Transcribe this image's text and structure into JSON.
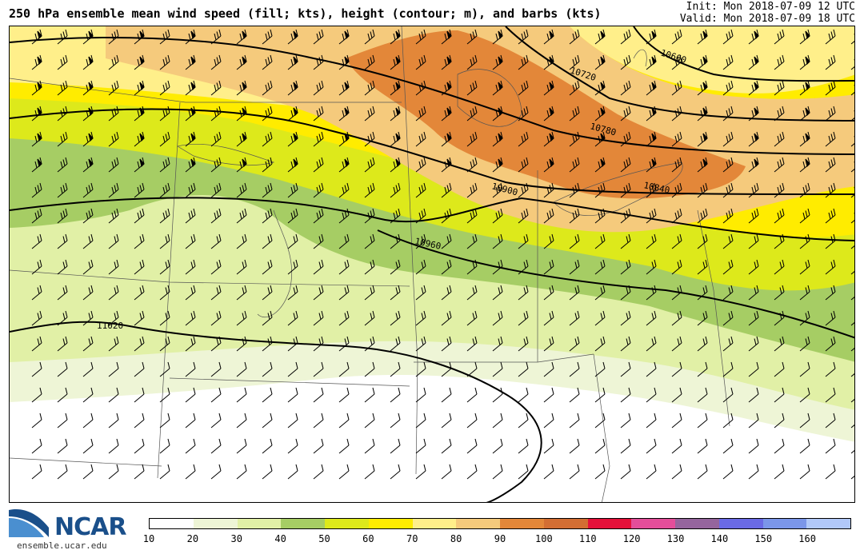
{
  "header": {
    "title": "250 hPa ensemble mean wind speed (fill; kts), height (contour; m), and barbs (kts)",
    "init": "Init: Mon 2018-07-09 12 UTC",
    "valid": "Valid: Mon 2018-07-09 18 UTC"
  },
  "map": {
    "contour_labels": [
      "10660",
      "10720",
      "10780",
      "10840",
      "10900",
      "10960",
      "11020"
    ]
  },
  "colorbar": {
    "ticks": [
      "10",
      "20",
      "30",
      "40",
      "50",
      "60",
      "70",
      "80",
      "90",
      "100",
      "110",
      "120",
      "130",
      "140",
      "150",
      "160"
    ],
    "colors": [
      "#ffffff",
      "#eef5d6",
      "#e1f0a6",
      "#a6cd64",
      "#dde91b",
      "#ffec00",
      "#ffef8a",
      "#f5ca7c",
      "#e38739",
      "#d36e33",
      "#e5113a",
      "#e44e9a",
      "#95659d",
      "#6a6ae5",
      "#7b96e9",
      "#b1c8f8"
    ]
  },
  "branding": {
    "logo_text": "NCAR",
    "url": "ensemble.ucar.edu"
  }
}
